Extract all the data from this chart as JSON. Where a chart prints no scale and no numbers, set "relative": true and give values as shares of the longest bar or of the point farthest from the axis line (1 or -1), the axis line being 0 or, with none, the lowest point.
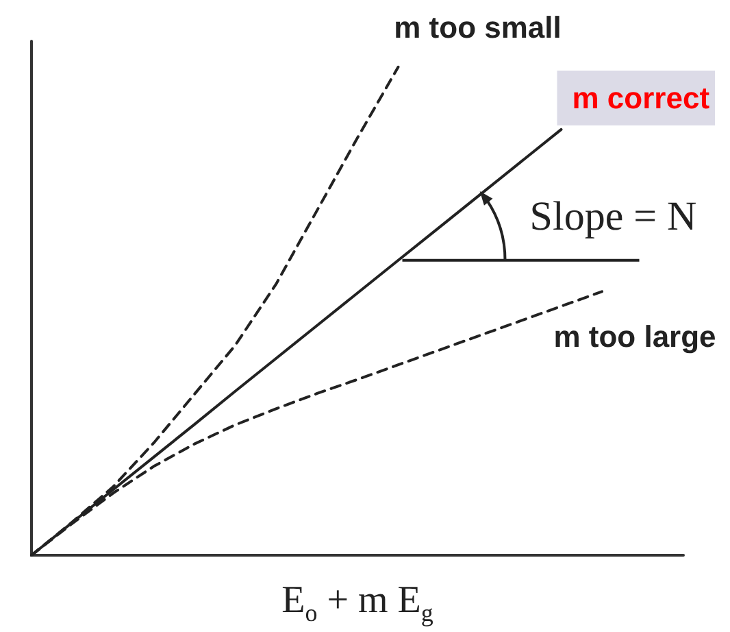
{
  "chart_data": {
    "type": "line",
    "relative": true,
    "xlabel": "E$_{o}$ + m E$_{g}$",
    "marker": "none",
    "categories": [
      null,
      null,
      null,
      null,
      null,
      null,
      null,
      null,
      null,
      null,
      null,
      null,
      null,
      null,
      null,
      null,
      null
    ],
    "series": [
      {
        "name": "m too small",
        "color": "#222222",
        "line_style": "dashed",
        "values": [
          0,
          0.068,
          0.14,
          0.23,
          0.33,
          0.43,
          0.555,
          0.705,
          0.855,
          1,
          null,
          null,
          null,
          null,
          null,
          null,
          null
        ]
      },
      {
        "name": "m correct",
        "color": "#222222",
        "line_style": "solid",
        "values": [
          0,
          0.067,
          0.134,
          0.201,
          0.268,
          0.336,
          0.403,
          0.47,
          0.537,
          0.604,
          0.671,
          0.738,
          0.805,
          0.872,
          null,
          null,
          null
        ]
      },
      {
        "name": "m too large",
        "color": "#222222",
        "line_style": "dashed",
        "values": [
          0,
          0.065,
          0.127,
          0.182,
          0.228,
          0.267,
          0.3,
          0.331,
          0.36,
          0.39,
          0.42,
          0.45,
          0.48,
          0.51,
          0.54,
          null,
          null
        ]
      }
    ],
    "annotations": [
      "Slope = N"
    ]
  }
}
